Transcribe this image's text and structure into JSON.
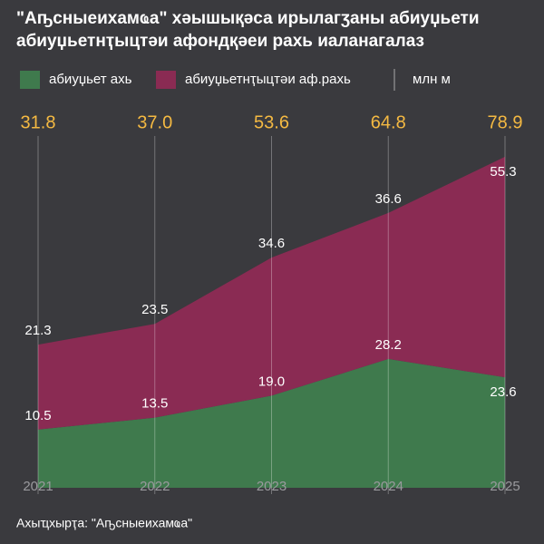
{
  "chart_data": {
    "type": "stacked-area",
    "title": "\"Аҧсныеихамҩа\" хәышықәса ирылагӡаны абиуџьети абиуџьетнҭыцтәи афондқәеи рахь иаланагалаз",
    "unit": "млн м",
    "source": "Ахыҵхырҭа: \"Аҧсныеихамҩа\"",
    "categories": [
      "2021",
      "2022",
      "2023",
      "2024",
      "2025"
    ],
    "series": [
      {
        "name": "абиуџьет ахь",
        "color": "#3f7a4d",
        "values": [
          10.5,
          13.5,
          19,
          28.2,
          23.6
        ],
        "value_labels": [
          "10.5",
          "13.5",
          "19.0",
          "28.2",
          "23.6"
        ]
      },
      {
        "name": "абиуџьетнҭыцтәи аф.рахь",
        "color": "#8a2b53",
        "values": [
          21.3,
          23.5,
          34.6,
          36.6,
          55.3
        ],
        "value_labels": [
          "21.3",
          "23.5",
          "34.6",
          "36.6",
          "55.3"
        ]
      }
    ],
    "total_labels": [
      "31.8",
      "37.0",
      "53.6",
      "64.8",
      "78.9"
    ],
    "total_color": "#f4b942",
    "ylim": [
      0,
      80
    ]
  }
}
